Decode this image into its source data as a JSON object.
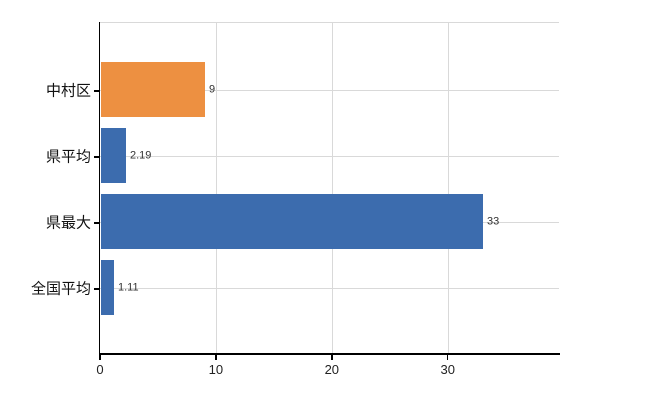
{
  "chart_data": {
    "type": "bar",
    "orientation": "horizontal",
    "title": "",
    "xlabel": "",
    "ylabel": "",
    "categories": [
      "中村区",
      "県平均",
      "県最大",
      "全国平均"
    ],
    "values": [
      9,
      2.19,
      33,
      1.11
    ],
    "value_labels": [
      "9",
      "2.19",
      "33",
      "1.11"
    ],
    "bar_colors": [
      "#ed9041",
      "#3c6cae",
      "#3c6cae",
      "#3c6cae"
    ],
    "xlim": [
      0,
      39.6
    ],
    "x_ticks": [
      0,
      10,
      20,
      30
    ],
    "x_tick_labels": [
      "0",
      "10",
      "20",
      "30"
    ],
    "grid": true,
    "legend": false
  },
  "colors": {
    "bar_orange": "#ed9041",
    "bar_blue": "#3c6cae",
    "grid": "#d9d9d9",
    "axis": "#000000",
    "category_text": "#111111",
    "value_text": "#333333",
    "tick_text": "#222222",
    "background": "#ffffff"
  }
}
